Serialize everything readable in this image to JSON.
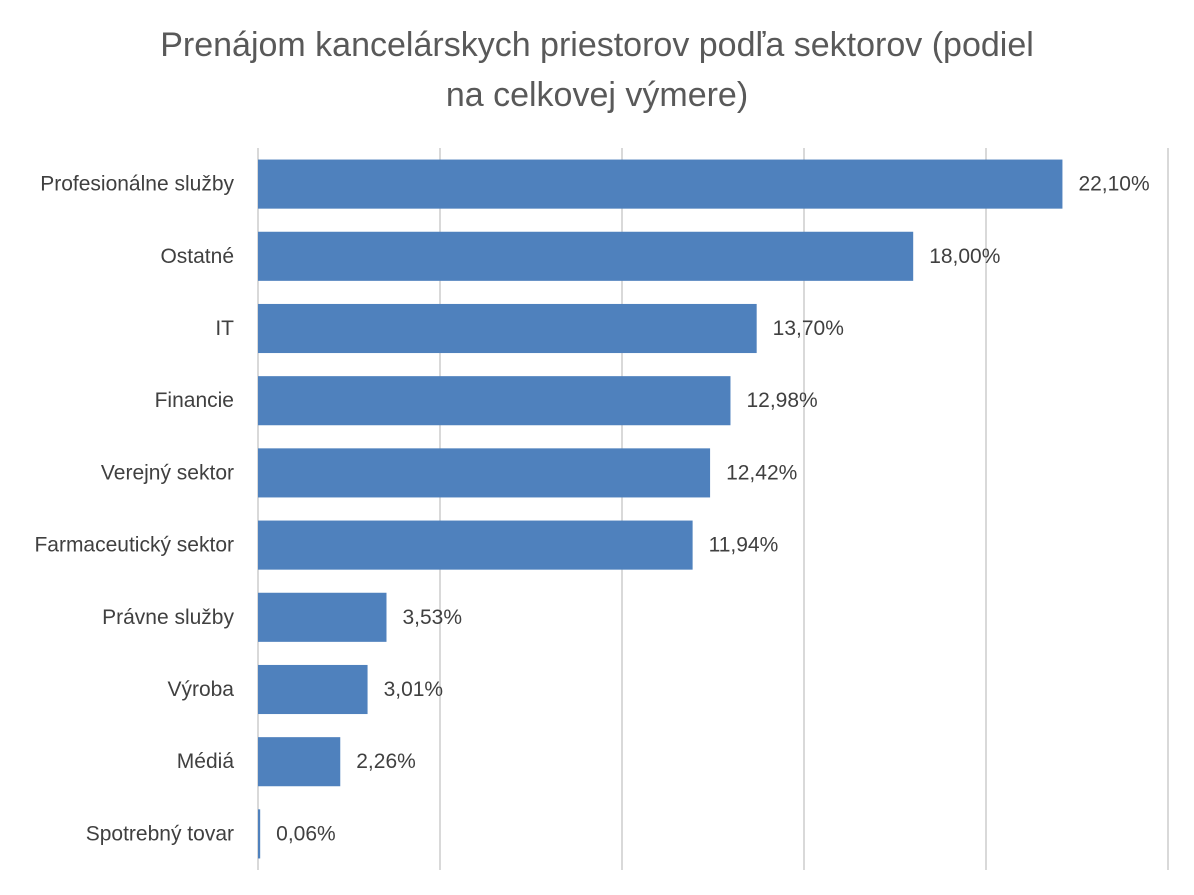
{
  "chart_data": {
    "type": "bar",
    "orientation": "horizontal",
    "title": "Prenájom kancelárskych priestorov podľa sektorov (podiel na celkovej výmere)",
    "title_lines": [
      "Prenájom kancelárskych priestorov podľa sektorov (podiel",
      "na celkovej výmere)"
    ],
    "categories": [
      "Profesionálne služby",
      "Ostatné",
      "IT",
      "Financie",
      "Verejný sektor",
      "Farmaceutický sektor",
      "Právne služby",
      "Výroba",
      "Médiá",
      "Spotrebný tovar"
    ],
    "values": [
      22.1,
      18.0,
      13.7,
      12.98,
      12.42,
      11.94,
      3.53,
      3.01,
      2.26,
      0.06
    ],
    "value_labels": [
      "22,10%",
      "18,00%",
      "13,70%",
      "12,98%",
      "12,42%",
      "11,94%",
      "3,53%",
      "3,01%",
      "2,26%",
      "0,06%"
    ],
    "xlim": [
      0,
      25
    ],
    "grid_step": 5,
    "grid": true,
    "legend": "none",
    "bar_color": "#4f81bd"
  }
}
